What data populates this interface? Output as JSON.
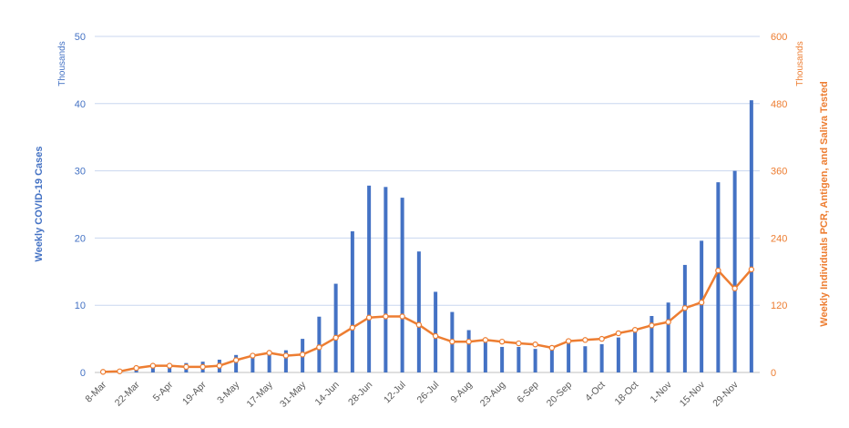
{
  "chart_data": {
    "type": "bar+line",
    "categories": [
      "8-Mar",
      "15-Mar",
      "22-Mar",
      "29-Mar",
      "5-Apr",
      "12-Apr",
      "19-Apr",
      "26-Apr",
      "3-May",
      "10-May",
      "17-May",
      "24-May",
      "31-May",
      "7-Jun",
      "14-Jun",
      "21-Jun",
      "28-Jun",
      "5-Jul",
      "12-Jul",
      "19-Jul",
      "26-Jul",
      "2-Aug",
      "9-Aug",
      "16-Aug",
      "23-Aug",
      "30-Aug",
      "6-Sep",
      "13-Sep",
      "20-Sep",
      "27-Sep",
      "4-Oct",
      "11-Oct",
      "18-Oct",
      "25-Oct",
      "1-Nov",
      "8-Nov",
      "15-Nov",
      "22-Nov",
      "29-Nov",
      "6-Dec"
    ],
    "x_tick_labels": [
      "8-Mar",
      "22-Mar",
      "5-Apr",
      "19-Apr",
      "3-May",
      "17-May",
      "31-May",
      "14-Jun",
      "28-Jun",
      "12-Jul",
      "26-Jul",
      "9-Aug",
      "23-Aug",
      "6-Sep",
      "20-Sep",
      "4-Oct",
      "18-Oct",
      "1-Nov",
      "15-Nov",
      "29-Nov"
    ],
    "series": [
      {
        "name": "Weekly COVID-19 Cases",
        "kind": "bar",
        "axis": "left",
        "color": "#4472c4",
        "values": [
          0.1,
          0.3,
          0.6,
          1.0,
          1.2,
          1.4,
          1.6,
          1.9,
          2.6,
          2.8,
          2.9,
          3.3,
          5.0,
          8.3,
          13.2,
          21.0,
          27.8,
          27.6,
          26.0,
          18.0,
          12.0,
          9.0,
          6.3,
          4.5,
          3.8,
          3.8,
          3.5,
          3.4,
          4.3,
          3.9,
          4.2,
          5.2,
          6.1,
          8.4,
          10.4,
          16.0,
          19.6,
          28.3,
          30.0,
          40.5
        ]
      },
      {
        "name": "Weekly Individuals PCR, Antigen, and Saliva Tested",
        "kind": "line",
        "axis": "right",
        "color": "#ed7d31",
        "values": [
          1,
          2,
          8,
          12,
          12,
          10,
          10,
          12,
          22,
          30,
          35,
          30,
          32,
          45,
          62,
          80,
          98,
          100,
          100,
          85,
          65,
          55,
          55,
          58,
          55,
          52,
          50,
          44,
          56,
          58,
          60,
          70,
          76,
          84,
          90,
          115,
          125,
          182,
          150,
          184
        ]
      }
    ],
    "y_left": {
      "label": "Weekly COVID-19 Cases",
      "unit": "Thousands",
      "ylim": [
        0,
        50
      ],
      "ticks": [
        0,
        10,
        20,
        30,
        40,
        50
      ]
    },
    "y_right": {
      "label": "Weekly Individuals PCR, Antigen, and Saliva Tested",
      "unit": "Thousands",
      "ylim": [
        0,
        600
      ],
      "ticks": [
        0,
        120,
        240,
        360,
        480,
        600
      ]
    },
    "grid": true,
    "legend": "none",
    "title": "",
    "xlabel": ""
  }
}
